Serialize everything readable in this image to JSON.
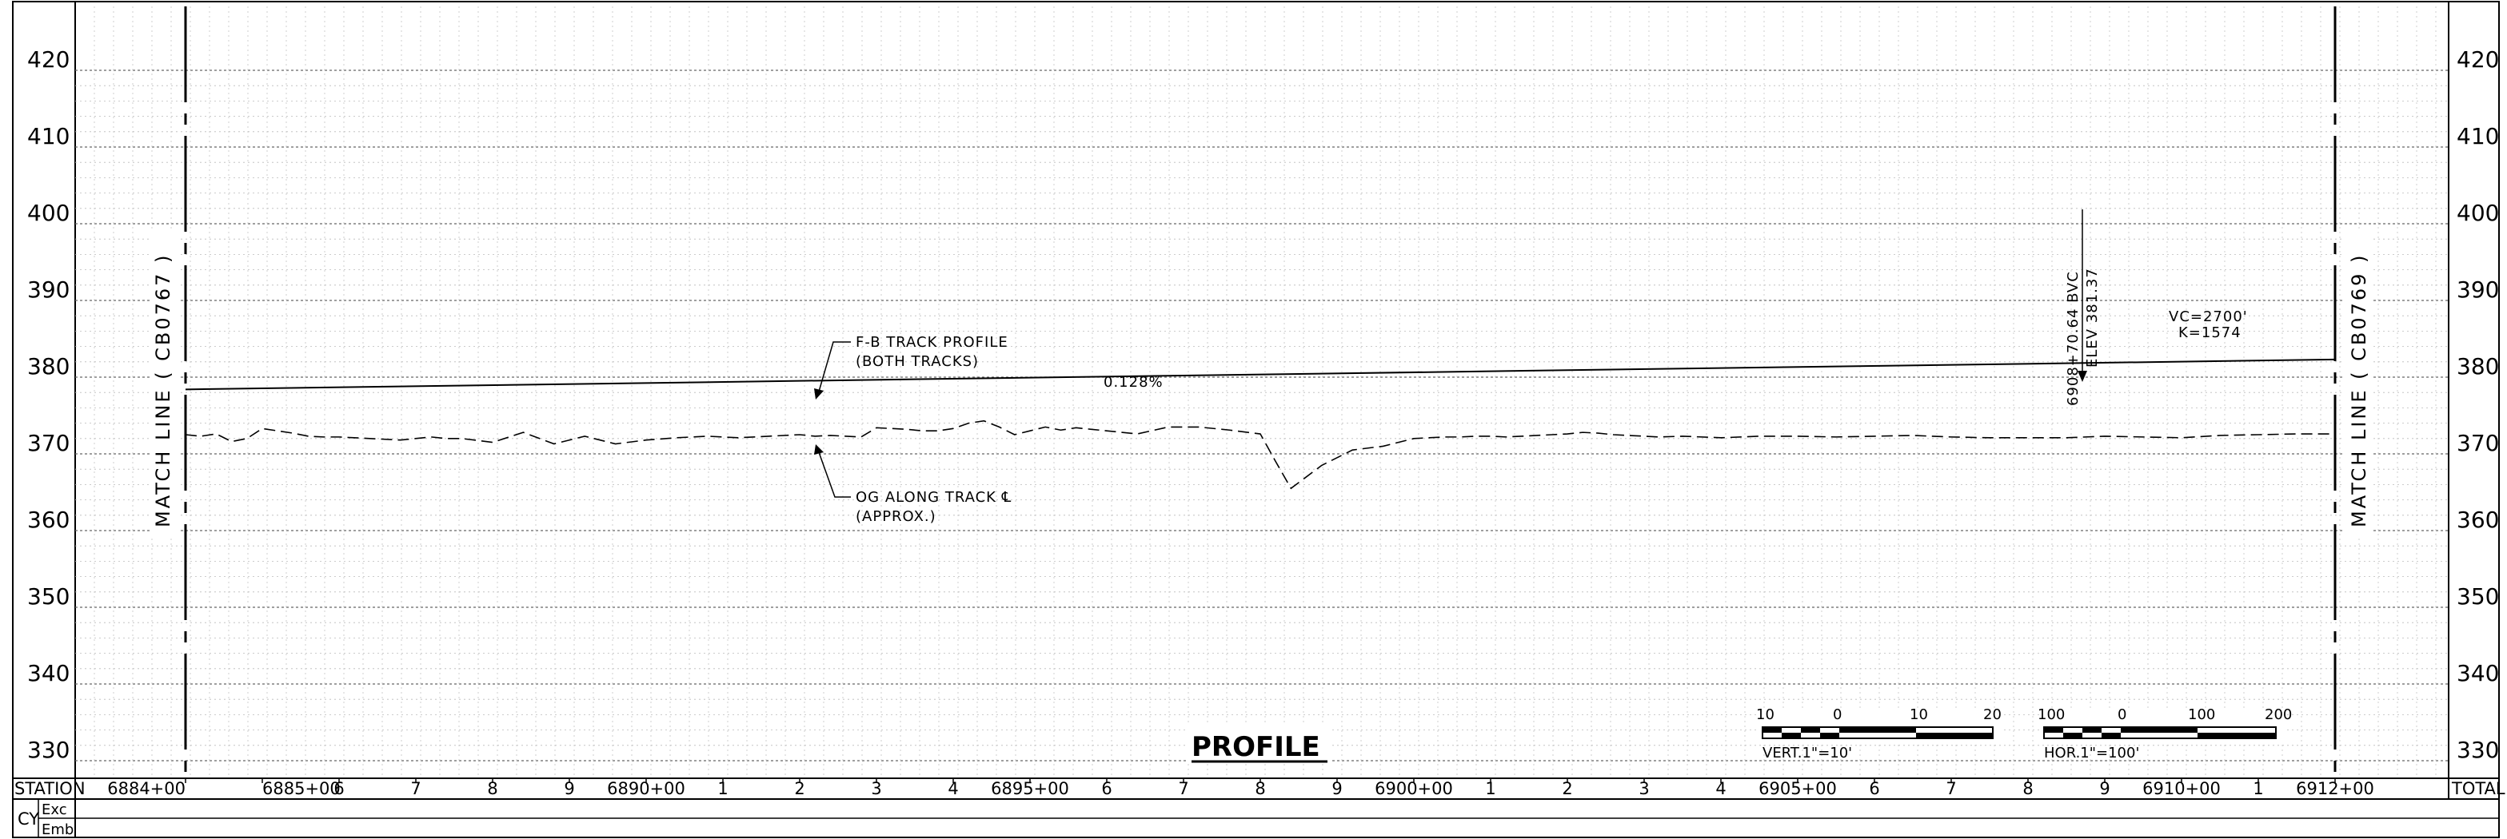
{
  "elevations": [
    330,
    340,
    350,
    360,
    370,
    380,
    390,
    400,
    410,
    420
  ],
  "stations": [
    "6884+00",
    "6885+00",
    "6",
    "7",
    "8",
    "9",
    "6890+00",
    "1",
    "2",
    "3",
    "4",
    "6895+00",
    "6",
    "7",
    "8",
    "9",
    "6900+00",
    "1",
    "2",
    "3",
    "4",
    "6905+00",
    "6",
    "7",
    "8",
    "9",
    "6910+00",
    "1",
    "6912+00"
  ],
  "station_header": "STATION",
  "total_header": "TOTAL",
  "cy_label": "CY",
  "exc_label": "Exc",
  "emb_label": "Emb",
  "match_left": "MATCH LINE ( CB0767 )",
  "match_right": "MATCH LINE ( CB0769 )",
  "track_label_1": "F-B TRACK PROFILE",
  "track_label_2": "(BOTH TRACKS)",
  "og_label_1": "OG ALONG TRACK ℄",
  "og_label_2": "(APPROX.)",
  "grade": "0.128%",
  "bvc_station": "6908+70.64 BVC",
  "bvc_elev": "ELEV 381.37",
  "vc_length": "VC=2700'",
  "k_value": "K=1574",
  "title": "PROFILE",
  "vert_scale_ticks": [
    "10",
    "0",
    "10",
    "20"
  ],
  "vert_scale_label": "VERT.1\"=10'",
  "hor_scale_ticks": [
    "100",
    "0",
    "100",
    "200"
  ],
  "hor_scale_label": "HOR.1\"=100'",
  "chart_data": {
    "type": "line",
    "xlabel": "STATION",
    "ylabel": "",
    "ylim": [
      330,
      420
    ],
    "xlim": [
      688400,
      691200
    ],
    "series": [
      {
        "name": "F-B TRACK PROFILE",
        "x": [
          688400,
          691200
        ],
        "y": [
          378.4,
          382.3
        ]
      },
      {
        "name": "OG ALONG TRACK ℄",
        "x": [
          688400,
          688420,
          688440,
          688460,
          688480,
          688500,
          688520,
          688540,
          688560,
          688580,
          688600,
          688640,
          688680,
          688720,
          688740,
          688760,
          688800,
          688840,
          688880,
          688900,
          688920,
          688960,
          689000,
          689040,
          689080,
          689120,
          689160,
          689200,
          689220,
          689240,
          689260,
          689280,
          689300,
          689320,
          689340,
          689360,
          689380,
          689400,
          689420,
          689440,
          689460,
          689480,
          689500,
          689520,
          689540,
          689560,
          689580,
          689600,
          689640,
          689680,
          689720,
          689760,
          689800,
          689820,
          689840,
          689880,
          689920,
          689960,
          690000,
          690020,
          690040,
          690060,
          690080,
          690100,
          690120,
          690140,
          690160,
          690180,
          690200,
          690220,
          690240,
          690260,
          690280,
          690300,
          690320,
          690350,
          690400,
          690450,
          690500,
          690550,
          690600,
          690650,
          690700,
          690750,
          690800,
          690850,
          690900,
          690950,
          691000,
          691050,
          691100,
          691150,
          691200
        ],
        "y": [
          372.5,
          372.3,
          372.6,
          371.6,
          372.0,
          373.3,
          373.0,
          372.7,
          372.3,
          372.2,
          372.2,
          372.0,
          371.8,
          372.2,
          372.0,
          372.0,
          371.5,
          372.8,
          371.3,
          371.8,
          372.3,
          371.3,
          371.8,
          372.1,
          372.3,
          372.1,
          372.3,
          372.5,
          372.3,
          372.4,
          372.3,
          372.2,
          373.4,
          373.3,
          373.2,
          373.0,
          373.0,
          373.3,
          374.0,
          374.3,
          373.5,
          372.5,
          373.0,
          373.5,
          373.1,
          373.4,
          373.2,
          373.0,
          372.6,
          373.5,
          373.5,
          373.1,
          372.6,
          369.0,
          365.5,
          368.5,
          370.5,
          371.0,
          372.0,
          372.1,
          372.2,
          372.2,
          372.3,
          372.3,
          372.2,
          372.3,
          372.4,
          372.5,
          372.6,
          372.8,
          372.7,
          372.5,
          372.4,
          372.3,
          372.2,
          372.3,
          372.1,
          372.3,
          372.3,
          372.2,
          372.3,
          372.4,
          372.2,
          372.1,
          372.1,
          372.1,
          372.3,
          372.2,
          372.1,
          372.4,
          372.5,
          372.6,
          372.6
        ]
      }
    ],
    "annotations": [
      "0.128%",
      "6908+70.64 BVC",
      "ELEV 381.37",
      "VC=2700'",
      "K=1574"
    ]
  }
}
